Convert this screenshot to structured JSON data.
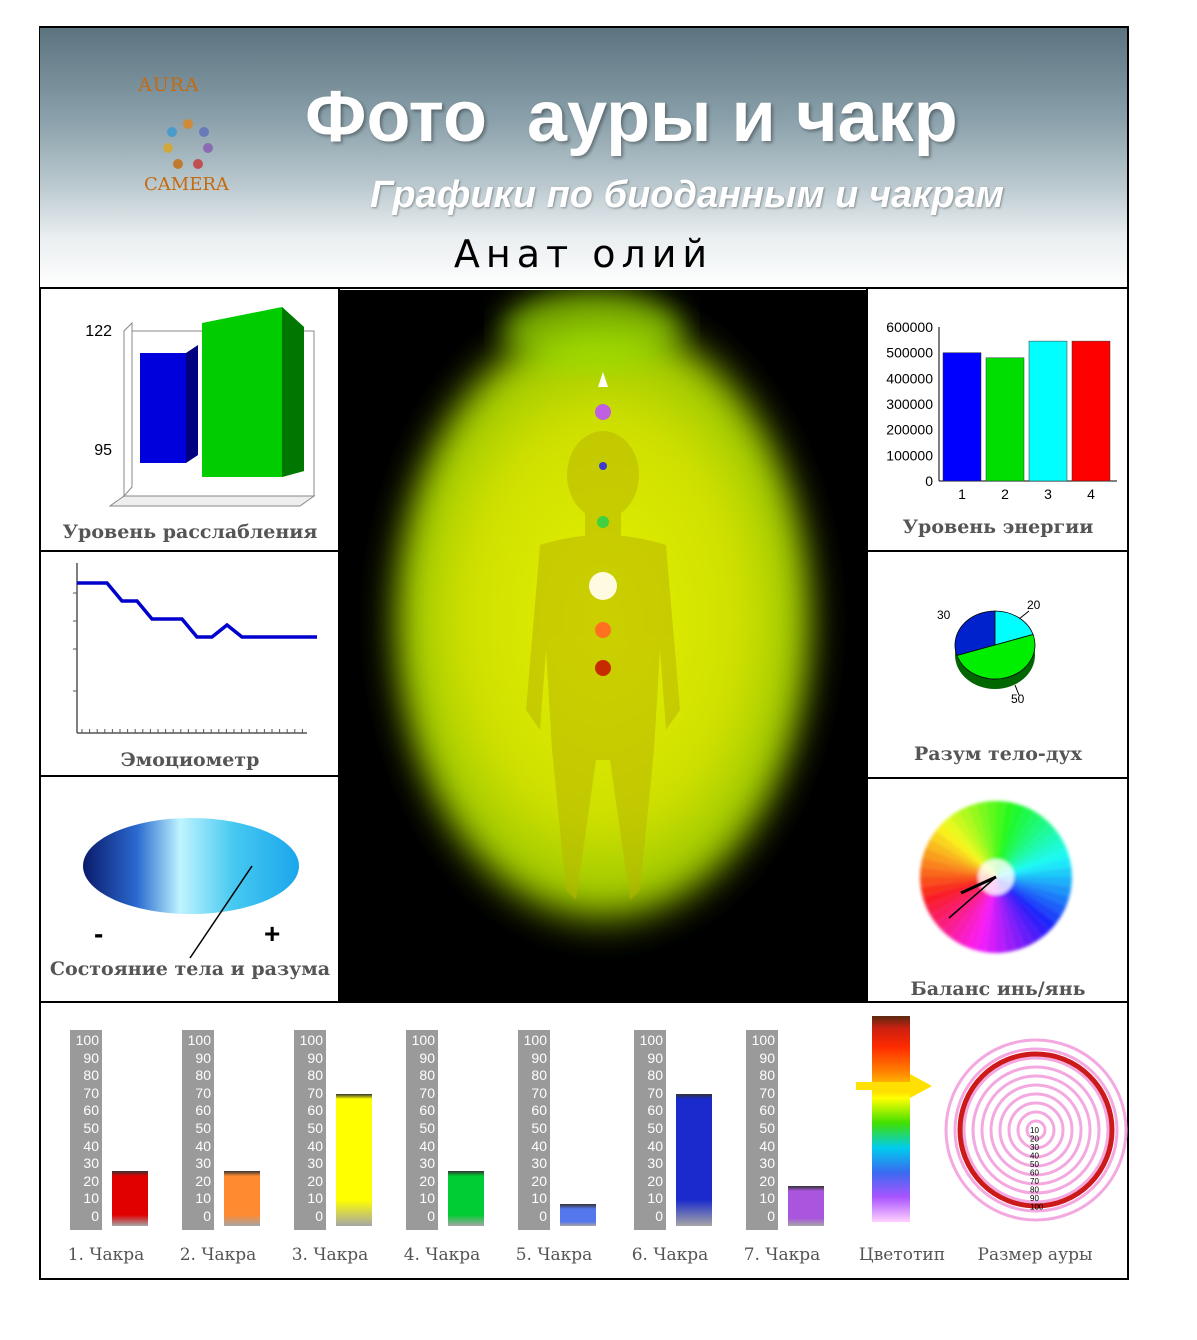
{
  "header": {
    "logo_top": "AURA",
    "logo_bottom": "CAMERA",
    "title": "Фото  ауры и чакр",
    "subtitle": "Графики по биоданным и чакрам",
    "name": "Анат олий"
  },
  "panels": {
    "relaxation": {
      "caption": "Уровень расслабления",
      "tick_top": "122",
      "tick_bottom": "95"
    },
    "energy": {
      "caption": "Уровень энергии"
    },
    "emotiometer": {
      "caption": "Эмоциометр"
    },
    "mind_body": {
      "caption": "Разум тело-дух",
      "label_30": "30",
      "label_20": "20",
      "label_50": "50"
    },
    "body_mind_state": {
      "caption": "Состояние тела и разума",
      "minus": "-",
      "plus": "+"
    },
    "yin_yang": {
      "caption": "Баланс инь/янь"
    }
  },
  "chakras": {
    "scale_labels": [
      "100",
      "90",
      "80",
      "70",
      "60",
      "50",
      "40",
      "30",
      "20",
      "10",
      "0"
    ],
    "items": [
      {
        "label": "1. Чакра",
        "value": 30,
        "color": "#e00000"
      },
      {
        "label": "2. Чакра",
        "value": 30,
        "color": "#ff8a30"
      },
      {
        "label": "3. Чакра",
        "value": 72,
        "color": "#ffff00"
      },
      {
        "label": "4. Чакра",
        "value": 30,
        "color": "#00cc33"
      },
      {
        "label": "5. Чакра",
        "value": 12,
        "color": "#5577ee"
      },
      {
        "label": "6. Чакра",
        "value": 72,
        "color": "#1a2acc"
      },
      {
        "label": "7. Чакра",
        "value": 22,
        "color": "#aa55dd"
      }
    ],
    "colortype_label": "Цветотип",
    "aura_size_label": "Размер ауры",
    "aura_rings": [
      "10",
      "20",
      "30",
      "40",
      "50",
      "60",
      "70",
      "80",
      "90",
      "100"
    ]
  },
  "chart_data": [
    {
      "type": "bar",
      "title": "Уровень энергии",
      "categories": [
        "1",
        "2",
        "3",
        "4"
      ],
      "values": [
        500000,
        480000,
        545000,
        545000
      ],
      "colors": [
        "#0000ff",
        "#00dd00",
        "#00ffff",
        "#ff0000"
      ],
      "ylim": [
        0,
        600000
      ],
      "yticks": [
        "0",
        "100000",
        "200000",
        "300000",
        "400000",
        "500000",
        "600000"
      ]
    },
    {
      "type": "bar",
      "title": "Уровень расслабления",
      "values": [
        112,
        122
      ],
      "colors": [
        "#0000dd",
        "#00cc00"
      ],
      "ylim": [
        95,
        122
      ]
    },
    {
      "type": "line",
      "title": "Эмоциометр",
      "values": [
        5,
        5,
        5,
        4.4,
        4.4,
        3.8,
        3.8,
        3.8,
        3.2,
        3.2,
        3.6,
        3.2,
        3.2,
        3.2,
        3.2,
        3.2,
        3.2
      ]
    },
    {
      "type": "pie",
      "title": "Разум тело-дух",
      "values": [
        30,
        20,
        50
      ],
      "labels": [
        "30",
        "20",
        "50"
      ],
      "colors": [
        "#0022cc",
        "#00ffff",
        "#00ee00"
      ]
    }
  ]
}
